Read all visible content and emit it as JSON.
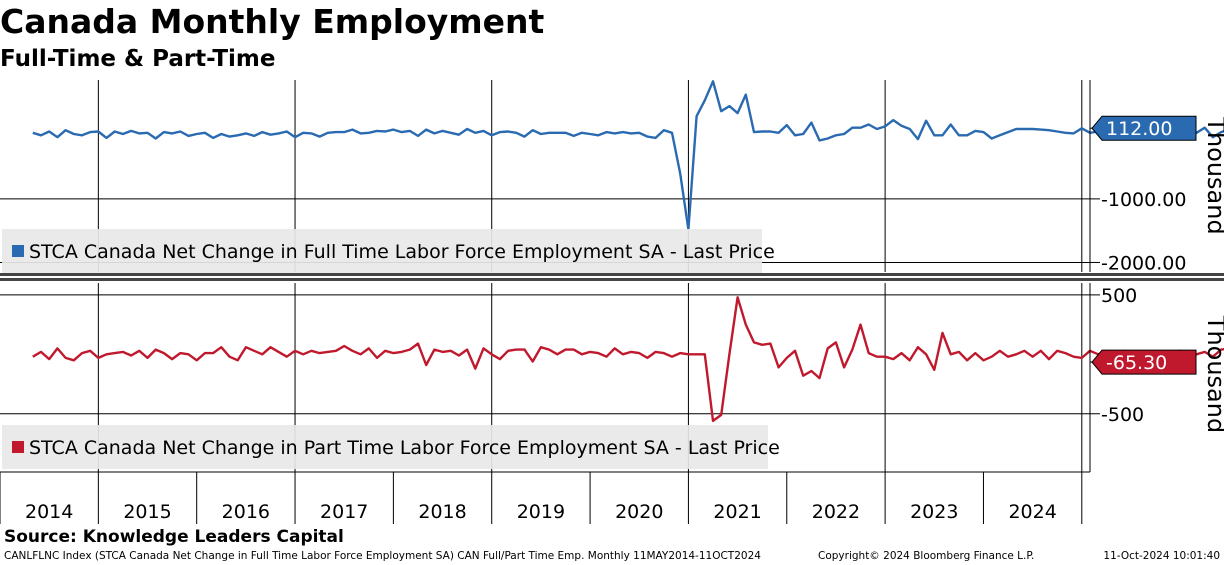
{
  "title": "Canada Monthly Employment",
  "subtitle": "Full-Time & Part-Time",
  "source": "Source: Knowledge Leaders Capital",
  "footer": {
    "left": "CANLFLNC Index (STCA Canada Net Change in Full Time Labor Force Employment SA) CAN Full/Part Time Emp. Monthly 11MAY2014-11OCT2024",
    "center": "Copyright© 2024 Bloomberg Finance L.P.",
    "right": "11-Oct-2024 10:01:40"
  },
  "chart_data": [
    {
      "type": "line",
      "panel": "top",
      "ylabel": "Thousand",
      "ylim": [
        -2150,
        870
      ],
      "yticks": [
        -1000,
        -2000
      ],
      "ytick_labels": [
        "-1000.00",
        "-2000.00"
      ],
      "xlim": [
        "2014-01",
        "2025-02"
      ],
      "xtick_labels": [
        "2014",
        "2015",
        "2016",
        "2017",
        "2018",
        "2019",
        "2020",
        "2021",
        "2022",
        "2023",
        "2024"
      ],
      "grid": true,
      "legend_placement": "bottom-left",
      "last_value_label": "112.00",
      "series": [
        {
          "name": "STCA Canada Net Change in Full Time Labor Force Employment SA - Last Price",
          "color": "#2a6ab1",
          "x_start": "2014-05",
          "frequency": "monthly",
          "values": [
            40,
            0,
            60,
            -30,
            80,
            20,
            0,
            50,
            60,
            -40,
            60,
            20,
            70,
            30,
            40,
            -50,
            50,
            30,
            60,
            -10,
            20,
            40,
            -40,
            20,
            -20,
            0,
            30,
            -10,
            50,
            10,
            30,
            60,
            -30,
            40,
            30,
            -20,
            40,
            50,
            50,
            90,
            30,
            40,
            70,
            60,
            90,
            50,
            70,
            -10,
            90,
            30,
            70,
            40,
            10,
            100,
            40,
            70,
            0,
            50,
            60,
            40,
            -20,
            80,
            20,
            40,
            40,
            40,
            -10,
            40,
            20,
            0,
            50,
            30,
            50,
            30,
            40,
            -20,
            -40,
            80,
            40,
            -600,
            -1480,
            300,
            550,
            850,
            380,
            460,
            350,
            640,
            50,
            60,
            60,
            40,
            160,
            0,
            20,
            200,
            -80,
            -50,
            0,
            20,
            120,
            120,
            170,
            100,
            140,
            240,
            150,
            100,
            -60,
            230,
            0,
            0,
            170,
            0,
            0,
            70,
            50,
            -50,
            0,
            50,
            100,
            100,
            100,
            90,
            80,
            60,
            40,
            30,
            110,
            40,
            60,
            20,
            60,
            40,
            50,
            40,
            30,
            0,
            50,
            80,
            70,
            0,
            40,
            120,
            -30,
            50,
            90,
            20,
            70,
            20,
            60,
            110,
            0,
            112
          ]
        }
      ]
    },
    {
      "type": "line",
      "panel": "bottom",
      "ylabel": "Thousand",
      "ylim": [
        -990,
        600
      ],
      "yticks": [
        500,
        -500
      ],
      "ytick_labels": [
        "500",
        "-500"
      ],
      "xlim": [
        "2014-01",
        "2025-02"
      ],
      "xtick_labels": [
        "2014",
        "2015",
        "2016",
        "2017",
        "2018",
        "2019",
        "2020",
        "2021",
        "2022",
        "2023",
        "2024"
      ],
      "grid": true,
      "legend_placement": "bottom-left",
      "last_value_label": "-65.30",
      "series": [
        {
          "name": "STCA Canada Net Change in Part Time Labor Force Employment SA - Last Price",
          "color": "#c0192e",
          "x_start": "2014-05",
          "frequency": "monthly",
          "values": [
            -20,
            20,
            -40,
            50,
            -30,
            -50,
            10,
            30,
            -30,
            0,
            10,
            20,
            -10,
            30,
            -30,
            40,
            10,
            -40,
            10,
            0,
            -50,
            10,
            10,
            60,
            -20,
            -50,
            60,
            30,
            0,
            60,
            20,
            -20,
            30,
            0,
            30,
            10,
            20,
            30,
            70,
            30,
            0,
            50,
            -30,
            30,
            10,
            20,
            40,
            90,
            -90,
            40,
            20,
            30,
            -10,
            40,
            -120,
            50,
            0,
            -40,
            30,
            40,
            40,
            -60,
            60,
            40,
            0,
            40,
            40,
            0,
            20,
            10,
            -20,
            50,
            0,
            20,
            10,
            -30,
            20,
            10,
            -20,
            10,
            0,
            0,
            0,
            -560,
            -510,
            0,
            480,
            250,
            100,
            80,
            90,
            -110,
            -30,
            30,
            -180,
            -140,
            -200,
            50,
            100,
            -110,
            40,
            250,
            10,
            -20,
            -20,
            -40,
            10,
            -50,
            60,
            0,
            -130,
            180,
            0,
            20,
            -50,
            10,
            -50,
            -20,
            30,
            -20,
            0,
            30,
            -20,
            30,
            -40,
            30,
            10,
            -20,
            -30,
            30,
            0,
            30,
            -20,
            30,
            10,
            -40,
            0,
            20,
            -20,
            10,
            30,
            20,
            0,
            20,
            -20,
            40,
            50,
            -20,
            0,
            60,
            70,
            50,
            -30,
            -50,
            100,
            -65.3
          ]
        }
      ]
    }
  ]
}
